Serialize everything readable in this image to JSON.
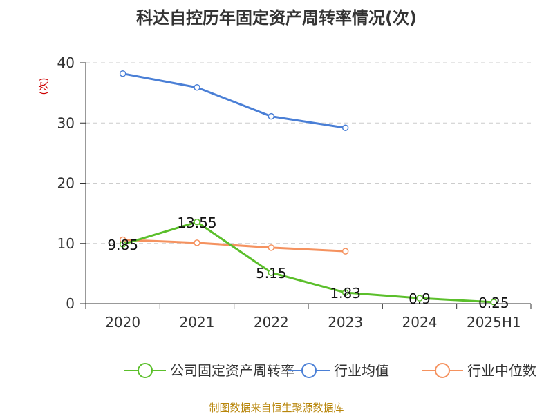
{
  "chart_data": {
    "type": "line",
    "title": "科达自控历年固定资产周转率情况(次)",
    "ylabel": "(次)",
    "categories": [
      "2020",
      "2021",
      "2022",
      "2023",
      "2024",
      "2025H1"
    ],
    "ylim": [
      0,
      40
    ],
    "yticks": [
      0,
      10,
      20,
      30,
      40
    ],
    "grid": true,
    "legend_position": "bottom",
    "series": [
      {
        "name": "公司固定资产周转率",
        "color": "#5bbf2b",
        "values": [
          9.85,
          13.55,
          5.15,
          1.83,
          0.9,
          0.25
        ],
        "show_labels": true
      },
      {
        "name": "行业均值",
        "color": "#4a7fd6",
        "values": [
          38.2,
          35.9,
          31.1,
          29.2,
          null,
          null
        ],
        "show_labels": false
      },
      {
        "name": "行业中位数",
        "color": "#f5925f",
        "values": [
          10.6,
          10.1,
          9.3,
          8.7,
          null,
          null
        ],
        "show_labels": false
      }
    ],
    "source": "制图数据来自恒生聚源数据库"
  }
}
